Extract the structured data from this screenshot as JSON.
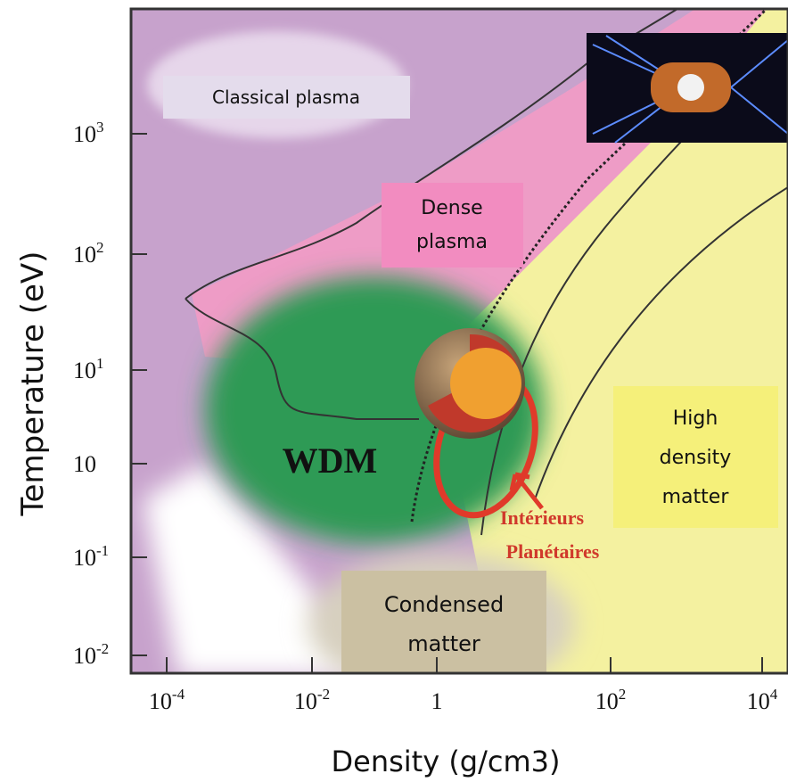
{
  "axes": {
    "y_label": "Temperature (eV)",
    "x_label": "Density (g/cm3)",
    "y_ticks": [
      {
        "base": "10",
        "exp": "3"
      },
      {
        "base": "10",
        "exp": "2"
      },
      {
        "base": "10",
        "exp": "1"
      },
      {
        "base": "10",
        "exp": ""
      },
      {
        "base": "10",
        "exp": "-1"
      },
      {
        "base": "10",
        "exp": "-2"
      }
    ],
    "x_ticks": [
      {
        "base": "10",
        "exp": "-4"
      },
      {
        "base": "10",
        "exp": "-2"
      },
      {
        "base": "1",
        "exp": ""
      },
      {
        "base": "10",
        "exp": "2"
      },
      {
        "base": "10",
        "exp": "4"
      }
    ]
  },
  "regions": {
    "classical_plasma": "Classical plasma",
    "dense_plasma": [
      "Dense",
      "plasma"
    ],
    "high_density_matter": [
      "High",
      "density",
      "matter"
    ],
    "condensed_matter": [
      "Condensed",
      "matter"
    ],
    "wdm": "WDM",
    "planetary_interiors": [
      "Intérieurs",
      "Planétaires"
    ]
  }
}
